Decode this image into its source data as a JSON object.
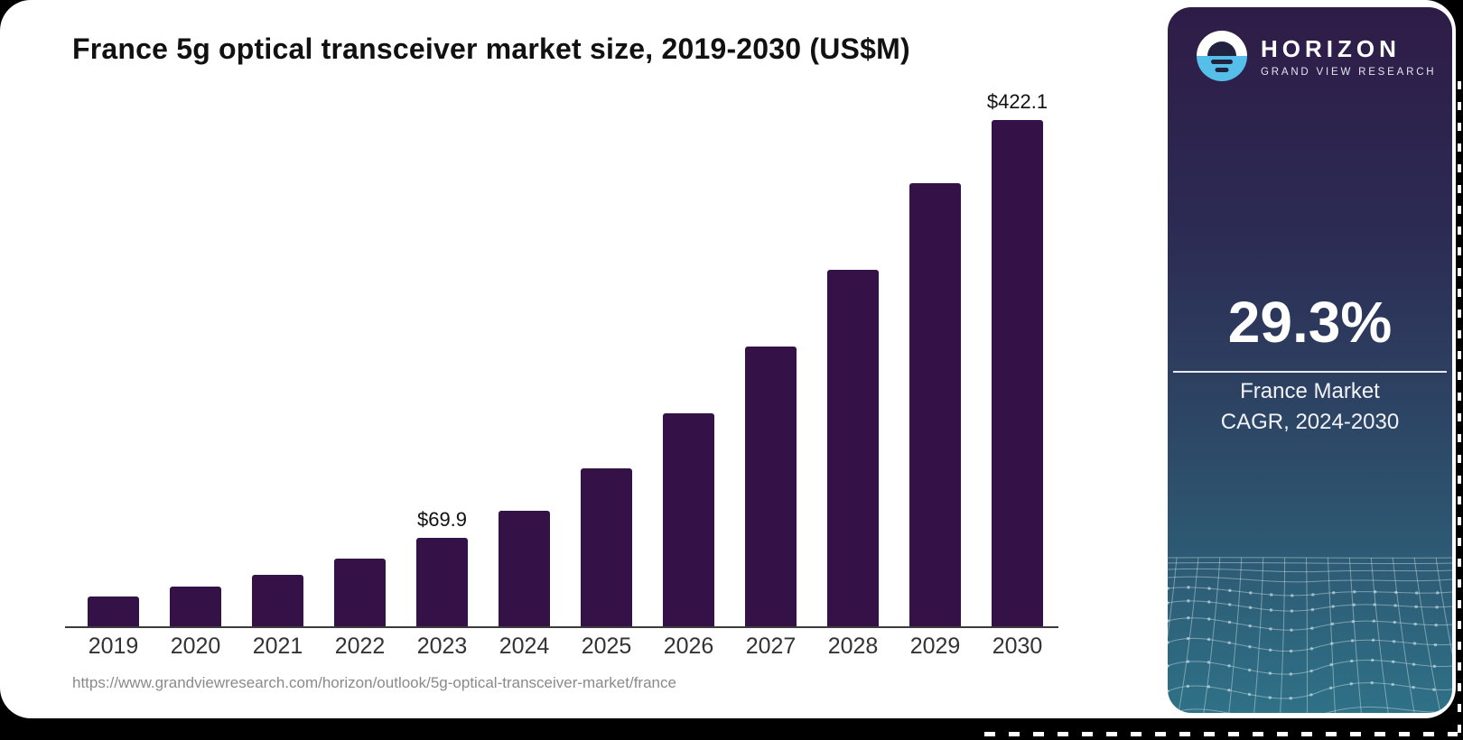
{
  "page": {
    "title": "France 5g optical transceiver market size, 2019-2030 (US$M)",
    "source_url": "https://www.grandviewresearch.com/horizon/outlook/5g-optical-transceiver-market/france"
  },
  "chart_data": {
    "type": "bar",
    "title": "France 5g optical transceiver market size, 2019-2030 (US$M)",
    "unit": "US$M",
    "categories": [
      "2019",
      "2020",
      "2021",
      "2022",
      "2023",
      "2024",
      "2025",
      "2026",
      "2027",
      "2028",
      "2029",
      "2030"
    ],
    "values": [
      23.5,
      31.4,
      40.3,
      53.3,
      69.9,
      90.8,
      124.5,
      167.5,
      220.0,
      281.0,
      349.0,
      422.1
    ],
    "labels": [
      "",
      "",
      "",
      "",
      "$69.9",
      "",
      "",
      "",
      "",
      "",
      "",
      "$422.1"
    ],
    "bar_color": "#341247",
    "axis_color": "#3c3c3c",
    "xlabel": "",
    "ylabel": "",
    "ylim": [
      0,
      422.1
    ],
    "grid": "off",
    "legend": "none"
  },
  "sidebar": {
    "brand": {
      "name": "HORIZON",
      "subtitle": "GRAND VIEW RESEARCH",
      "logo_icon": "horizon-sun-circle",
      "logo_top_color": "#ffffff",
      "logo_bottom_color": "#55bfe9"
    },
    "stat": {
      "value": "29.3%",
      "label_line1": "France Market",
      "label_line2": "CAGR, 2024-2030"
    },
    "gradient_top": "#2e1c47",
    "gradient_bottom": "#2f7187"
  }
}
